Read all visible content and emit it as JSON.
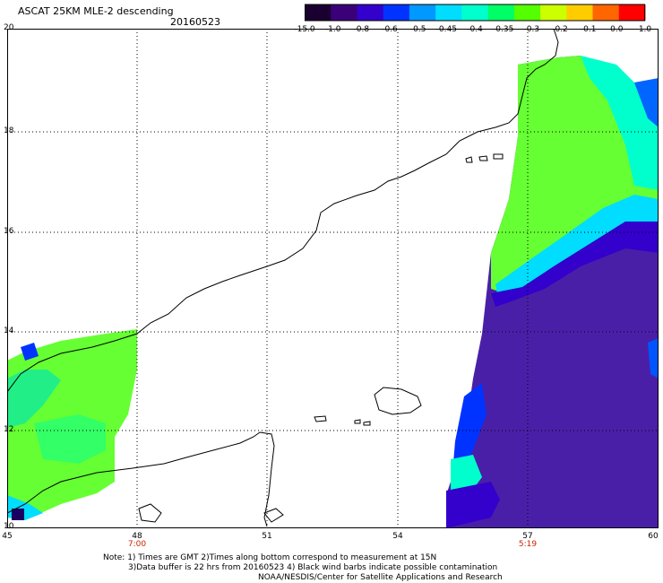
{
  "header": {
    "title": "ASCAT 25KM MLE-2 descending",
    "date": "20160523"
  },
  "colorbar": {
    "labels": [
      "-15.0",
      "-1.0",
      "-0.8",
      "-0.6",
      "-0.5",
      "-0.45",
      "-0.4",
      "-0.35",
      "-0.3",
      "-0.2",
      "-0.1",
      "0.0",
      "1.0"
    ],
    "colors": [
      "#1a0030",
      "#3a0078",
      "#3300cc",
      "#0033ff",
      "#0099ff",
      "#00ddff",
      "#00ffcc",
      "#00ff66",
      "#55ff00",
      "#ccff00",
      "#ffcc00",
      "#ff6600",
      "#ff0000"
    ]
  },
  "axes": {
    "x_labels": [
      "45",
      "48",
      "51",
      "54",
      "57",
      "60"
    ],
    "y_labels": [
      "20",
      "18",
      "16",
      "14",
      "12",
      "10"
    ],
    "time_labels": [
      "7:00",
      "5:19"
    ]
  },
  "notes": {
    "line1": "Note: 1) Times are GMT 2)Times along bottom correspond to measurement at 15N",
    "line2": "3)Data buffer is 22 hrs from 20160523 4) Black wind barbs indicate possible contamination",
    "line3": "NOAA/NESDIS/Center for Satellite Applications and Research"
  },
  "colors": {
    "green": "#66ff33",
    "cyan": "#00ffcc",
    "blue": "#0033ff",
    "purple": "#4a1fa8",
    "dark_purple": "#3a1090"
  }
}
